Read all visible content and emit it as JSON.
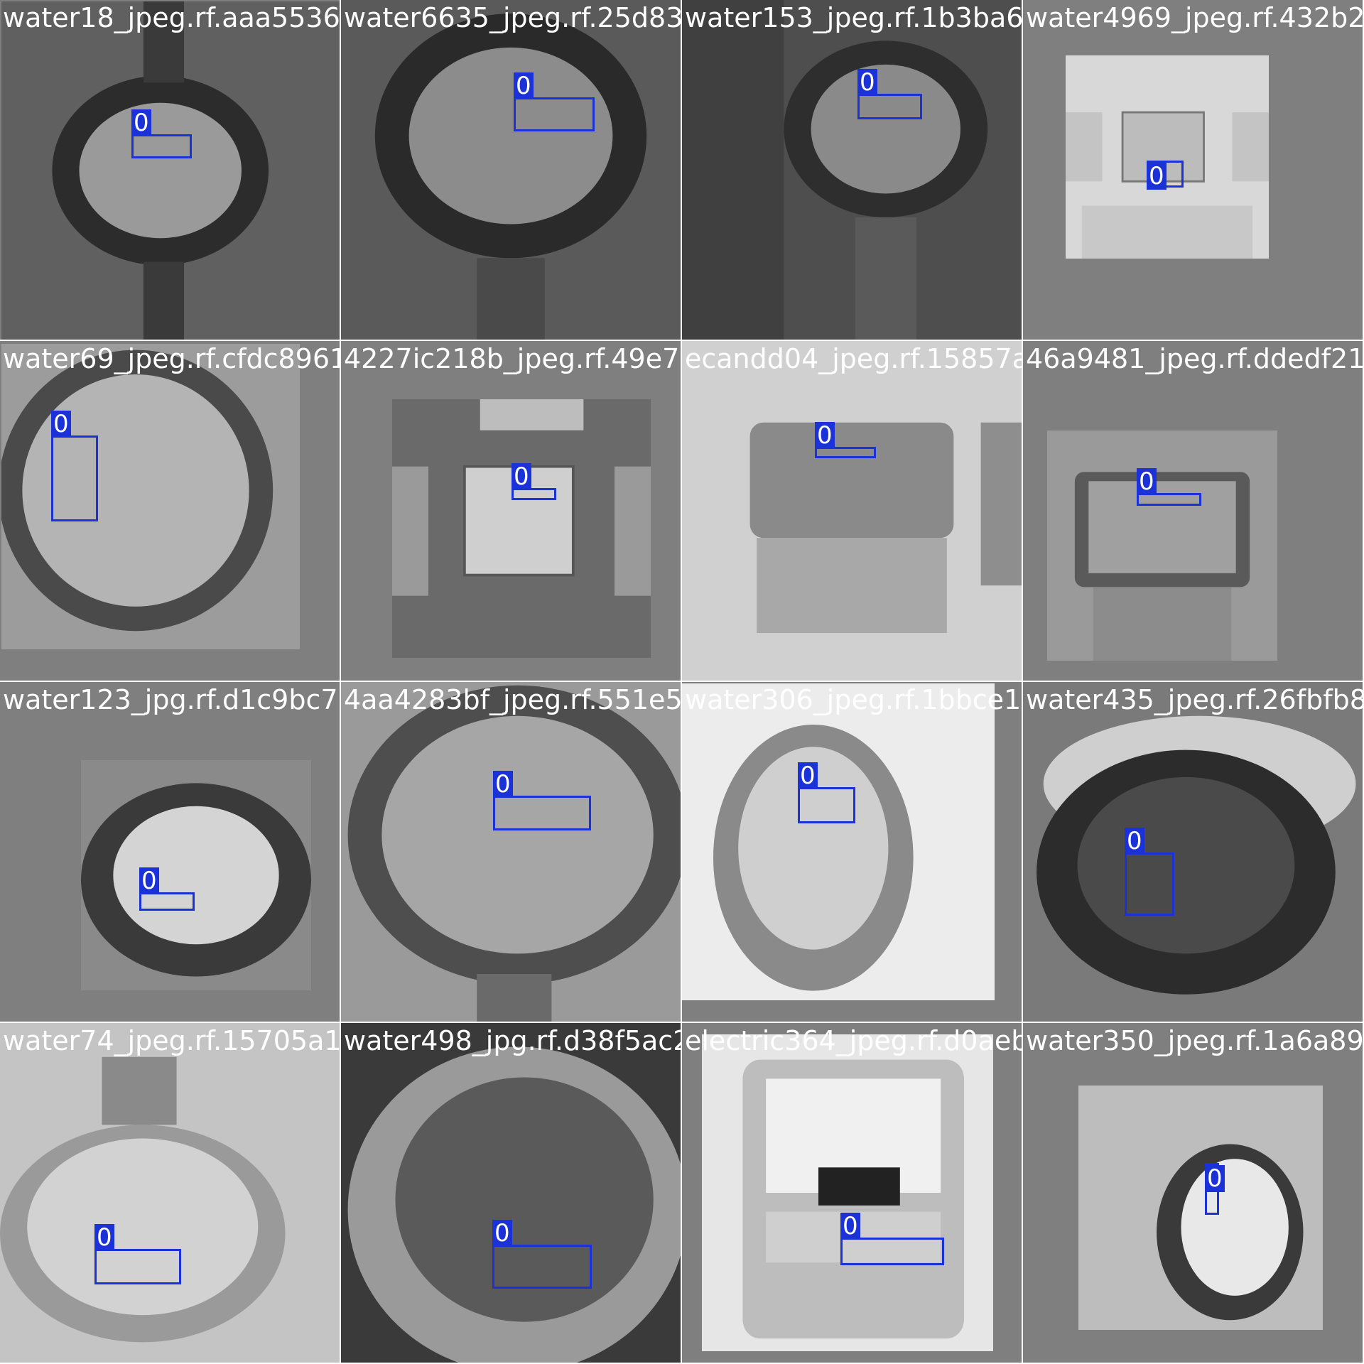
{
  "class_color": "#1a32d8",
  "background_color": "#7f7f7f",
  "tiles": [
    {
      "filename": "water18_jpeg.rf.aaa553639",
      "label": "0",
      "tone": "#6e6e6e"
    },
    {
      "filename": "water6635_jpeg.rf.25d8306bfe",
      "label": "0",
      "tone": "#5a5a5a"
    },
    {
      "filename": "water153_jpeg.rf.1b3ba65f5",
      "label": "0",
      "tone": "#4e4e4e"
    },
    {
      "filename": "water4969_jpeg.rf.432b2827",
      "label": "0",
      "tone": "#d8d8d8"
    },
    {
      "filename": "water69_jpeg.rf.cfdc8961b0d",
      "label": "0",
      "tone": "#9c9c9c"
    },
    {
      "filename": "4227ic218b_jpeg.rf.49e77427",
      "label": "0",
      "tone": "#6a6a6a"
    },
    {
      "filename": "ecandd04_jpeg.rf.15857a85",
      "label": "0",
      "tone": "#d0d0d0"
    },
    {
      "filename": "46a9481_jpeg.rf.ddedf21b8",
      "label": "0",
      "tone": "#9a9a9a"
    },
    {
      "filename": "water123_jpg.rf.d1c9bc7666",
      "label": "0",
      "tone": "#8a8a8a"
    },
    {
      "filename": "4aa4283bf_jpeg.rf.551e5a4f4",
      "label": "0",
      "tone": "#9a9a9a"
    },
    {
      "filename": "water306_jpeg.rf.1bbce154c",
      "label": "0",
      "tone": "#ececec"
    },
    {
      "filename": "water435_jpeg.rf.26fbfb8929",
      "label": "0",
      "tone": "#7a7a7a"
    },
    {
      "filename": "water74_jpeg.rf.15705a111",
      "label": "0",
      "tone": "#c4c4c4"
    },
    {
      "filename": "water498_jpg.rf.d38f5ac2d0a",
      "label": "0",
      "tone": "#3a3a3a"
    },
    {
      "filename": "electric364_jpeg.rf.d0aebd8",
      "label": "0",
      "tone": "#e6e6e6"
    },
    {
      "filename": "water350_jpeg.rf.1a6a8954b8",
      "label": "0",
      "tone": "#bdbdbd"
    }
  ]
}
